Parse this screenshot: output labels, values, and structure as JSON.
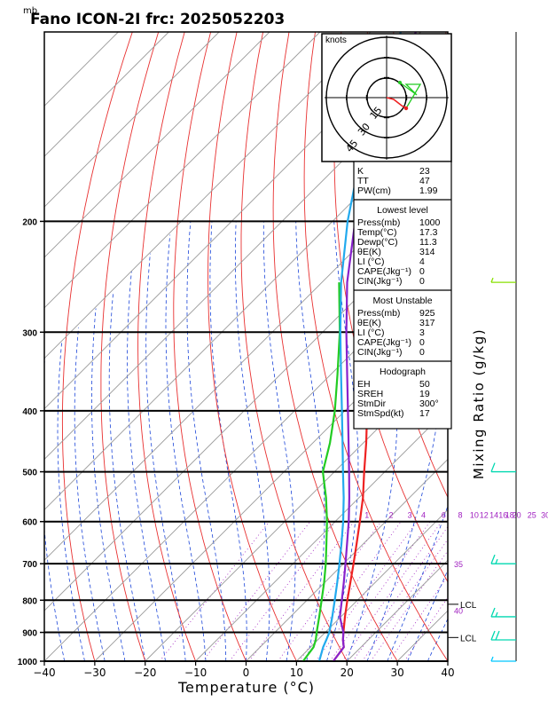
{
  "title": "Fano ICON-2I frc: 2025052203",
  "pressure_unit": "mb",
  "chart_data": {
    "type": "line",
    "title": "Fano ICON-2I frc: 2025052203",
    "xlabel": "Temperature (°C)",
    "ylabel": "",
    "right_label": "Mixing Ratio (g/kg)",
    "xlim": [
      -40,
      40
    ],
    "ylim_pressure": [
      1000,
      100
    ],
    "x_ticks": [
      "−40",
      "−30",
      "−20",
      "−10",
      "0",
      "10",
      "20",
      "30",
      "40"
    ],
    "x_tick_values": [
      -40,
      -30,
      -20,
      -10,
      0,
      10,
      20,
      30,
      40
    ],
    "pressure_ticks": [
      "200",
      "300",
      "400",
      "500",
      "600",
      "700",
      "800",
      "900",
      "1000"
    ],
    "pressure_tick_values": [
      200,
      300,
      400,
      500,
      600,
      700,
      800,
      900,
      1000
    ],
    "mixing_ratio_labels": [
      "1",
      "2",
      "3",
      "4",
      "6",
      "8",
      "10",
      "12",
      "14",
      "16",
      "18",
      "20",
      "25",
      "30"
    ],
    "mixing_ratio_label_x": [
      -3.7,
      1.1,
      4.8,
      7.5,
      11.5,
      14.8,
      17.6,
      19.5,
      21.5,
      23.3,
      24.6,
      26.0,
      29.0,
      31.7
    ],
    "right_pressure_markers": [
      {
        "label": "35",
        "p": 700
      },
      {
        "label": "40",
        "p": 830
      }
    ],
    "lcl_markers": [
      {
        "label": "LCL",
        "p": 812
      },
      {
        "label": "LCL",
        "p": 917
      }
    ],
    "series": [
      {
        "p": [
          1000,
          950,
          925,
          900,
          850,
          800,
          750,
          700,
          650,
          600,
          550,
          500,
          450,
          400,
          350,
          300,
          270
        ],
        "temp": [
          17.3,
          16.6,
          15.0,
          13.6,
          10.8,
          8.0,
          5.1,
          2.0,
          -1.4,
          -5.1,
          -9.2,
          -14.1,
          -19.4,
          -25.6,
          -32.6,
          -40.8,
          -46.5
        ],
        "color": "#ee2222"
      },
      {
        "p": [
          1000,
          950,
          925,
          900,
          850,
          800,
          750,
          700,
          650,
          600,
          550,
          500,
          450,
          400,
          350,
          300,
          250
        ],
        "temp": [
          11.3,
          10.6,
          9.6,
          8.3,
          5.7,
          2.9,
          -0.1,
          -3.5,
          -7.4,
          -11.6,
          -16.5,
          -22.3,
          -26.6,
          -32.0,
          -38.7,
          -46.6,
          -56.6
        ],
        "color": "#22cc22"
      },
      {
        "p": [
          1000,
          950,
          925,
          900,
          850,
          800,
          750,
          700,
          650,
          600,
          550,
          500,
          450,
          400,
          350,
          300,
          250,
          200,
          150,
          100
        ],
        "temp": [
          14.5,
          12.5,
          11.7,
          10.8,
          8.3,
          5.5,
          2.5,
          -0.8,
          -4.4,
          -8.4,
          -13.0,
          -18.3,
          -24.1,
          -30.6,
          -38.0,
          -46.5,
          -56.2,
          -67.0,
          -79.5,
          -94.0
        ],
        "color": "#22aaee"
      },
      {
        "p": [
          1000,
          950,
          925,
          900,
          850,
          800,
          750,
          700,
          650,
          600,
          550,
          500,
          450,
          400,
          350,
          300,
          250,
          200,
          150,
          100
        ],
        "temp": [
          17.3,
          16.6,
          15.0,
          13.6,
          9.8,
          6.9,
          3.8,
          0.4,
          -3.3,
          -7.3,
          -11.9,
          -17.1,
          -22.9,
          -29.4,
          -36.8,
          -45.3,
          -55.0,
          -65.5,
          -77.8,
          -91.0
        ],
        "color": "#8822cc"
      }
    ],
    "wind_barbs": [
      {
        "p": 1000,
        "speed_kt": 5,
        "color": "#00c8ff"
      },
      {
        "p": 925,
        "speed_kt": 20,
        "color": "#00d8b0"
      },
      {
        "p": 850,
        "speed_kt": 15,
        "color": "#00d8b0"
      },
      {
        "p": 700,
        "speed_kt": 15,
        "color": "#00d8b0"
      },
      {
        "p": 500,
        "speed_kt": 10,
        "color": "#00d8b0"
      },
      {
        "p": 250,
        "speed_kt": 5,
        "color": "#88e000"
      }
    ],
    "hodograph": {
      "label": "knots",
      "ring_labels": [
        "15",
        "30",
        "45"
      ],
      "colors": [
        "#ee2222",
        "#22cc22"
      ]
    },
    "indices": {
      "general": [
        {
          "label": "K",
          "value": "23"
        },
        {
          "label": "TT",
          "value": "47"
        },
        {
          "label": "PW(cm)",
          "value": "1.99"
        }
      ],
      "lowest_level_title": "Lowest level",
      "lowest_level": [
        {
          "label": "Press(mb)",
          "value": "1000"
        },
        {
          "label": "Temp(°C)",
          "value": "17.3"
        },
        {
          "label": "Dewp(°C)",
          "value": "11.3"
        },
        {
          "label": "θE(K)",
          "value": "314"
        },
        {
          "label": "LI (°C)",
          "value": "4"
        },
        {
          "label": "CAPE(Jkg⁻¹)",
          "value": "0"
        },
        {
          "label": "CIN(Jkg⁻¹)",
          "value": "0"
        }
      ],
      "most_unstable_title": "Most Unstable",
      "most_unstable": [
        {
          "label": "Press(mb)",
          "value": "925"
        },
        {
          "label": "θE(K)",
          "value": "317"
        },
        {
          "label": "LI (°C)",
          "value": "3"
        },
        {
          "label": "CAPE(Jkg⁻¹)",
          "value": "0"
        },
        {
          "label": "CIN(Jkg⁻¹)",
          "value": "0"
        }
      ],
      "hodograph_title": "Hodograph",
      "hodograph_values": [
        {
          "label": "EH",
          "value": "50"
        },
        {
          "label": "SREH",
          "value": "19"
        },
        {
          "label": "StmDir",
          "value": "300°"
        },
        {
          "label": "StmSpd(kt)",
          "value": "17"
        }
      ]
    }
  }
}
